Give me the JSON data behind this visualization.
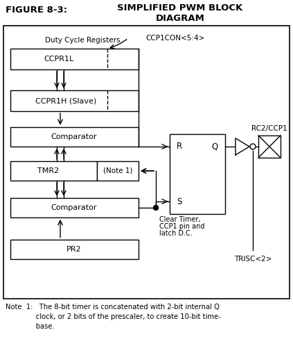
{
  "bg_color": "#ffffff",
  "title_left": "FIGURE 8-3:",
  "title_right": "SIMPLIFIED PWM BLOCK\nDIAGRAM",
  "note_text": "Note  1:   The 8-bit timer is concatenated with 2-bit internal Q\n              clock, or 2 bits of the prescaler, to create 10-bit time-\n              base.",
  "fig_w": 4.23,
  "fig_h": 4.88,
  "dpi": 100
}
